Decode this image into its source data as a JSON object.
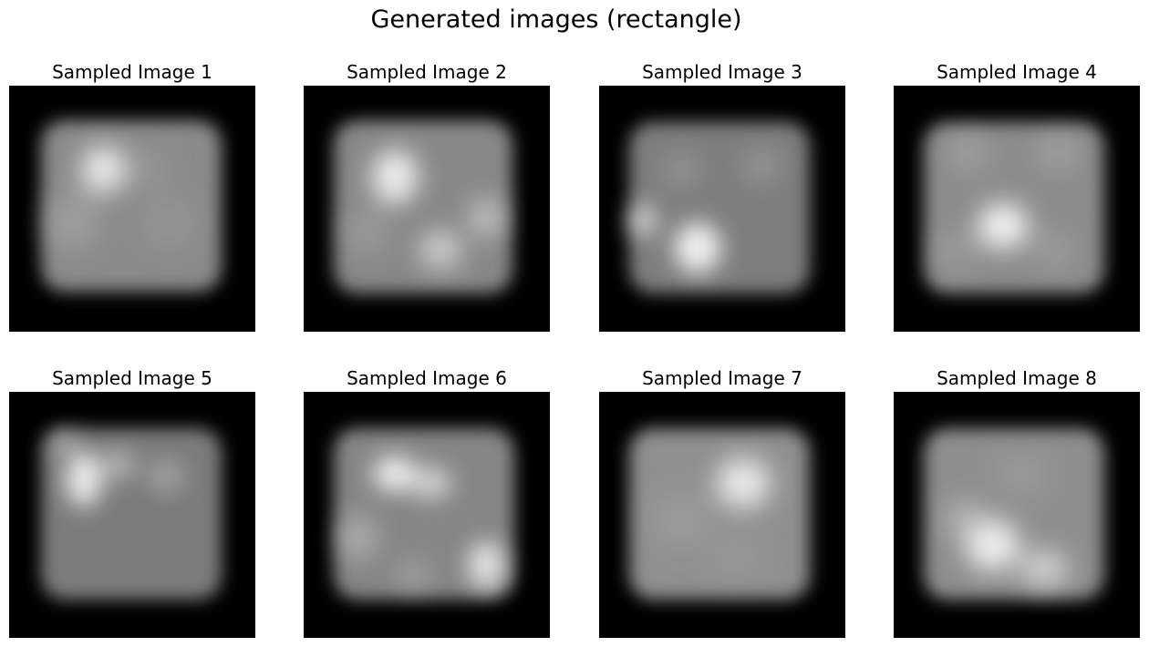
{
  "figure": {
    "title": "Generated images (rectangle)"
  },
  "panels": [
    {
      "title": "Sampled Image 1"
    },
    {
      "title": "Sampled Image 2"
    },
    {
      "title": "Sampled Image 3"
    },
    {
      "title": "Sampled Image 4"
    },
    {
      "title": "Sampled Image 5"
    },
    {
      "title": "Sampled Image 6"
    },
    {
      "title": "Sampled Image 7"
    },
    {
      "title": "Sampled Image 8"
    }
  ],
  "colors": {
    "background": "#000000",
    "base_gray": "#8a8a8a",
    "highlight": "#ffffff"
  }
}
